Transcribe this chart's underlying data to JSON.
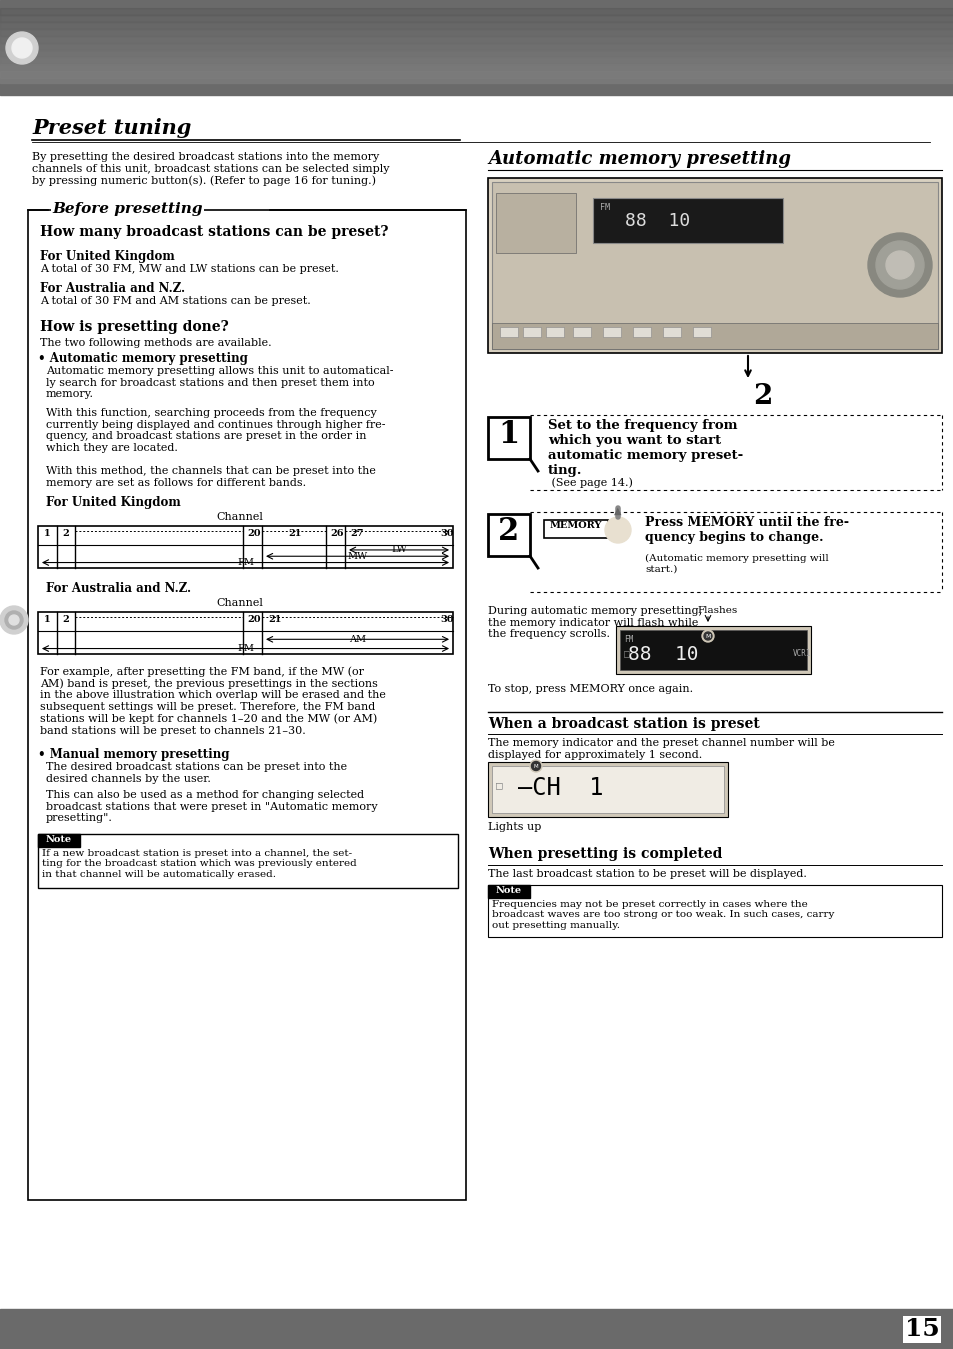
{
  "page_bg": "#ffffff",
  "title_preset_tuning": "Preset tuning",
  "intro_text": "By presetting the desired broadcast stations into the memory\nchannels of this unit, broadcast stations can be selected simply\nby pressing numeric button(s). (Refer to page 16 for tuning.)",
  "before_presetting_title": "Before presetting",
  "section1_title": "How many broadcast stations can be preset?",
  "for_uk_bold": "For United Kingdom",
  "for_uk_text": "A total of 30 FM, MW and LW stations can be preset.",
  "for_anz_bold": "For Australia and N.Z.",
  "for_anz_text": "A total of 30 FM and AM stations can be preset.",
  "section2_title": "How is presetting done?",
  "methods_intro": "The two following methods are available.",
  "auto_memory_bold": "• Automatic memory presetting",
  "auto_memory_text1": "Automatic memory presetting allows this unit to automatical-\nly search for broadcast stations and then preset them into\nmemory.",
  "auto_memory_text2": "With this function, searching proceeds from the frequency\ncurrently being displayed and continues through higher fre-\nquency, and broadcast stations are preset in the order in\nwhich they are located.",
  "auto_memory_text3": "With this method, the channels that can be preset into the\nmemory are set as follows for different bands.",
  "for_uk_channel_title": "For United Kingdom",
  "channel_label": "Channel",
  "for_anz_channel_title": "For Australia and N.Z.",
  "example_text": "For example, after presetting the FM band, if the MW (or\nAM) band is preset, the previous presettings in the sections\nin the above illustration which overlap will be erased and the\nsubsequent settings will be preset. Therefore, the FM band\nstations will be kept for channels 1–20 and the MW (or AM)\nband stations will be preset to channels 21–30.",
  "manual_memory_bold": "• Manual memory presetting",
  "manual_memory_text1": "The desired broadcast stations can be preset into the\ndesired channels by the user.",
  "manual_memory_text2": "This can also be used as a method for changing selected\nbroadcast stations that were preset in \"Automatic memory\npresetting\".",
  "note_label": "Note",
  "note_text": "If a new broadcast station is preset into a channel, the set-\nting for the broadcast station which was previously entered\nin that channel will be automatically erased.",
  "right_title": "Automatic memory presetting",
  "step1_text_bold": "Set to the frequency from\nwhich you want to start\nautomatic memory preset-\nting.",
  "step1_text_normal": " (See page 14.)",
  "step2_header": "Press MEMORY until the fre-\nquency begins to change.",
  "step2_sub": "(Automatic memory presetting will\nstart.)",
  "during_text": "During automatic memory presetting,\nthe memory indicator will flash while\nthe frequency scrolls.",
  "flashes_label": "Flashes",
  "stop_text": "To stop, press MEMORY once again.",
  "when_preset_title": "When a broadcast station is preset",
  "when_preset_text": "The memory indicator and the preset channel number will be\ndisplayed for approximately 1 second.",
  "lights_up": "Lights up",
  "when_completed_title": "When presetting is completed",
  "when_completed_text": "The last broadcast station to be preset will be displayed.",
  "note2_label": "Note",
  "note2_text": "Frequencies may not be preset correctly in cases where the\nbroadcast waves are too strong or too weak. In such cases, carry\nout presetting manually.",
  "page_number": "15"
}
